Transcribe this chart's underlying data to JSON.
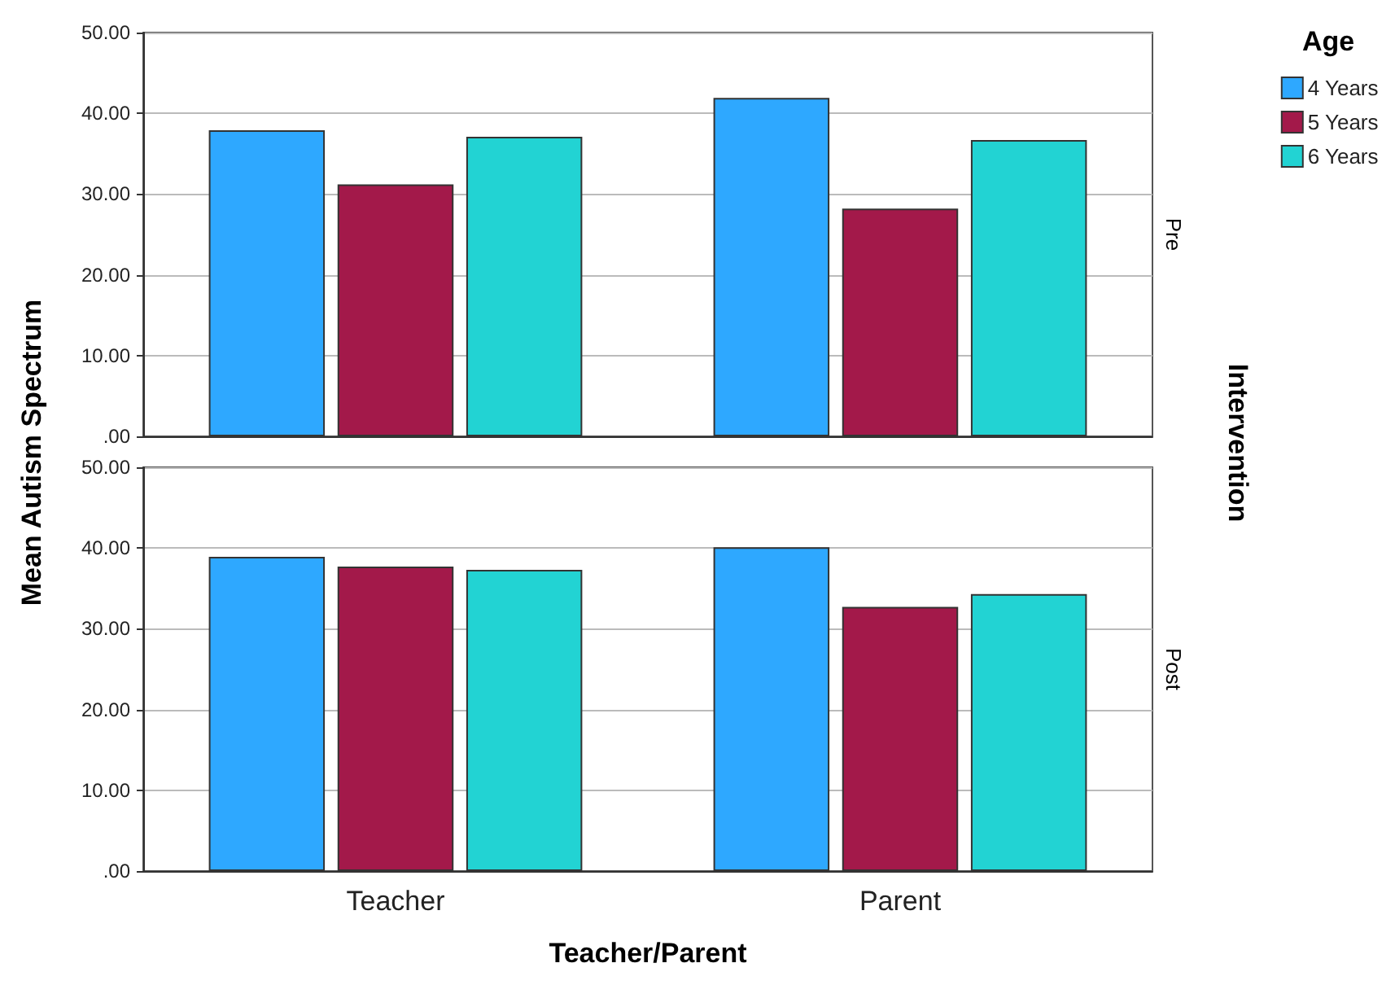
{
  "chart_data": [
    {
      "type": "bar",
      "categories": [
        null,
        null
      ],
      "ylabel": "Mean Autism Spectrum",
      "legend_title": "Age",
      "legend": "top right",
      "tick_labels": "y",
      "grid": "y",
      "annotations": [
        "Pre",
        "Intervention"
      ],
      "ylim": [
        0,
        50
      ],
      "yticks": [
        {
          "value": 0,
          "label": ".00"
        },
        {
          "value": 10,
          "label": "10.00"
        },
        {
          "value": 20,
          "label": "20.00"
        },
        {
          "value": 30,
          "label": "30.00"
        },
        {
          "value": 40,
          "label": "40.00"
        },
        {
          "value": 50,
          "label": "50.00"
        }
      ],
      "series": [
        {
          "name": "4 Years",
          "color": "#2ea8ff",
          "values": [
            37.9,
            41.9
          ]
        },
        {
          "name": "5 Years",
          "color": "#a3194a",
          "values": [
            31.2,
            28.2
          ]
        },
        {
          "name": "6 Years",
          "color": "#22d3d3",
          "values": [
            37.1,
            36.7
          ]
        }
      ]
    },
    {
      "type": "bar",
      "categories": [
        "Teacher",
        "Parent"
      ],
      "xlabel": "Teacher/Parent",
      "grid": "y",
      "annotations": [
        "Post"
      ],
      "ylim": [
        0,
        50
      ],
      "yticks": [
        {
          "value": 0,
          "label": ".00"
        },
        {
          "value": 10,
          "label": "10.00"
        },
        {
          "value": 20,
          "label": "20.00"
        },
        {
          "value": 30,
          "label": "30.00"
        },
        {
          "value": 40,
          "label": "40.00"
        },
        {
          "value": 50,
          "label": "50.00"
        }
      ],
      "series": [
        {
          "color": "#2ea8ff",
          "values": [
            38.9,
            40.1
          ]
        },
        {
          "color": "#a3194a",
          "values": [
            37.7,
            32.7
          ]
        },
        {
          "color": "#22d3d3",
          "values": [
            37.3,
            34.3
          ]
        }
      ]
    }
  ]
}
